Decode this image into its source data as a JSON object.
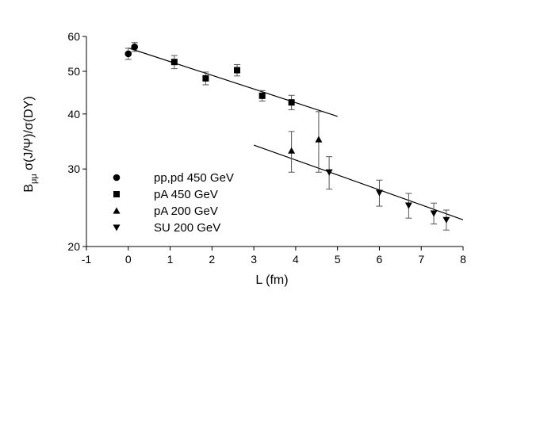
{
  "chart_data": {
    "type": "scatter",
    "xlabel": "L (fm)",
    "ylabel_main": "B",
    "ylabel_sub": "μμ",
    "ylabel_rest": " σ(J/Ψ)/σ(DY)",
    "xlim": [
      -1,
      8
    ],
    "ylim": [
      20,
      60
    ],
    "y_scale": "log",
    "x_ticks": [
      "-1",
      "0",
      "1",
      "2",
      "3",
      "4",
      "5",
      "6",
      "7",
      "8"
    ],
    "y_ticks": [
      "20",
      "30",
      "40",
      "50",
      "60"
    ],
    "legend_position": "lower-left",
    "series": [
      {
        "name": "pp,pd 450 GeV",
        "marker": "circle",
        "points": [
          {
            "x": 0.0,
            "y": 54.8,
            "err_lo": 1.6,
            "err_hi": 1.6
          },
          {
            "x": 0.15,
            "y": 56.8,
            "err_lo": 1.3,
            "err_hi": 1.3
          }
        ]
      },
      {
        "name": "pA 450 GeV",
        "marker": "square",
        "points": [
          {
            "x": 1.1,
            "y": 52.5,
            "err_lo": 1.8,
            "err_hi": 1.8
          },
          {
            "x": 1.85,
            "y": 48.2,
            "err_lo": 1.6,
            "err_hi": 1.6
          },
          {
            "x": 2.6,
            "y": 50.3,
            "err_lo": 1.5,
            "err_hi": 1.5
          },
          {
            "x": 3.2,
            "y": 44.0,
            "err_lo": 1.2,
            "err_hi": 1.2
          },
          {
            "x": 3.9,
            "y": 42.5,
            "err_lo": 1.6,
            "err_hi": 1.6
          }
        ]
      },
      {
        "name": "pA 200 GeV",
        "marker": "triangle-up",
        "points": [
          {
            "x": 3.9,
            "y": 33.0,
            "err_lo": 3.5,
            "err_hi": 3.5
          },
          {
            "x": 4.55,
            "y": 35.0,
            "err_lo": 5.5,
            "err_hi": 5.5
          }
        ]
      },
      {
        "name": "SU 200 GeV",
        "marker": "triangle-down",
        "points": [
          {
            "x": 4.8,
            "y": 29.5,
            "err_lo": 2.5,
            "err_hi": 2.5
          },
          {
            "x": 6.0,
            "y": 26.5,
            "err_lo": 1.8,
            "err_hi": 1.8
          },
          {
            "x": 6.7,
            "y": 24.8,
            "err_lo": 1.6,
            "err_hi": 1.6
          },
          {
            "x": 7.3,
            "y": 23.8,
            "err_lo": 1.3,
            "err_hi": 1.3
          },
          {
            "x": 7.6,
            "y": 23.0,
            "err_lo": 1.2,
            "err_hi": 1.2
          }
        ]
      }
    ],
    "fit_lines": [
      {
        "x": [
          0.0,
          5.0
        ],
        "y": [
          56.5,
          39.5
        ]
      },
      {
        "x": [
          3.0,
          8.0
        ],
        "y": [
          34.0,
          23.0
        ]
      }
    ]
  }
}
